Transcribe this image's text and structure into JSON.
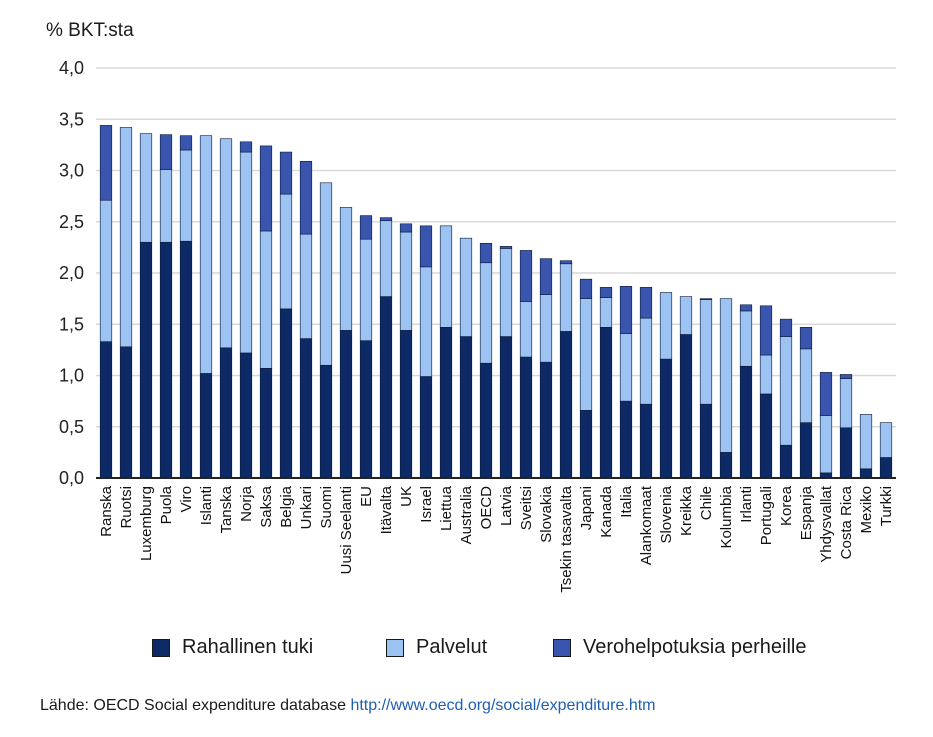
{
  "unit_label": "% BKT:sta",
  "source": {
    "text": "Lähde: OECD Social expenditure database",
    "url": "http://www.oecd.org/social/expenditure.htm"
  },
  "colors": {
    "cash": "#0e2a66",
    "services": "#9dc3f3",
    "tax": "#3a55ad",
    "grid": "#d9d9d9",
    "axis": "#222222"
  },
  "chart_data": {
    "type": "bar",
    "stacked": true,
    "title": "",
    "xlabel": "",
    "ylabel": "% BKT:sta",
    "ylim": [
      0,
      4.0
    ],
    "yticks": [
      "0,0",
      "0,5",
      "1,0",
      "1,5",
      "2,0",
      "2,5",
      "3,0",
      "3,5",
      "4,0"
    ],
    "grid": true,
    "legend_position": "bottom",
    "categories": [
      "Ranska",
      "Ruotsi",
      "Luxemburg",
      "Puola",
      "Viro",
      "Islanti",
      "Tanska",
      "Norja",
      "Saksa",
      "Belgia",
      "Unkari",
      "Suomi",
      "Uusi Seelanti",
      "EU",
      "Itävalta",
      "UK",
      "Israel",
      "Liettua",
      "Australia",
      "OECD",
      "Latvia",
      "Sveitsi",
      "Slovakia",
      "Tsekin tasavalta",
      "Japani",
      "Kanada",
      "Italia",
      "Alankomaat",
      "Slovenia",
      "Kreikka",
      "Chile",
      "Kolumbia",
      "Irlanti",
      "Portugali",
      "Korea",
      "Espanja",
      "Yhdysvallat",
      "Costa Rica",
      "Mexiko",
      "Turkki"
    ],
    "series": [
      {
        "name": "Rahallinen tuki",
        "color": "#0e2a66",
        "values": [
          1.33,
          1.28,
          2.3,
          2.3,
          2.31,
          1.02,
          1.27,
          1.22,
          1.07,
          1.65,
          1.36,
          1.1,
          1.44,
          1.34,
          1.77,
          1.44,
          0.99,
          1.47,
          1.38,
          1.12,
          1.38,
          1.18,
          1.13,
          1.43,
          0.66,
          1.47,
          0.75,
          0.72,
          1.16,
          1.4,
          0.72,
          0.25,
          1.09,
          0.82,
          0.32,
          0.54,
          0.05,
          0.49,
          0.09,
          0.2
        ]
      },
      {
        "name": "Palvelut",
        "color": "#9dc3f3",
        "values": [
          1.38,
          2.14,
          1.06,
          0.71,
          0.89,
          2.32,
          2.04,
          1.96,
          1.34,
          1.12,
          1.02,
          1.78,
          1.2,
          0.99,
          0.74,
          0.96,
          1.07,
          0.99,
          0.96,
          0.98,
          0.86,
          0.54,
          0.66,
          0.66,
          1.09,
          0.29,
          0.66,
          0.84,
          0.65,
          0.37,
          1.02,
          1.5,
          0.54,
          0.38,
          1.06,
          0.72,
          0.56,
          0.48,
          0.53,
          0.34
        ]
      },
      {
        "name": "Verohelpotuksia perheille",
        "color": "#3a55ad",
        "values": [
          0.73,
          0.0,
          0.0,
          0.34,
          0.14,
          0.0,
          0.0,
          0.1,
          0.83,
          0.41,
          0.71,
          0.0,
          0.0,
          0.23,
          0.03,
          0.08,
          0.4,
          0.0,
          0.0,
          0.19,
          0.02,
          0.5,
          0.35,
          0.03,
          0.19,
          0.1,
          0.46,
          0.3,
          0.0,
          0.0,
          0.01,
          0.0,
          0.06,
          0.48,
          0.17,
          0.21,
          0.42,
          0.04,
          0.0,
          0.0
        ]
      }
    ]
  }
}
